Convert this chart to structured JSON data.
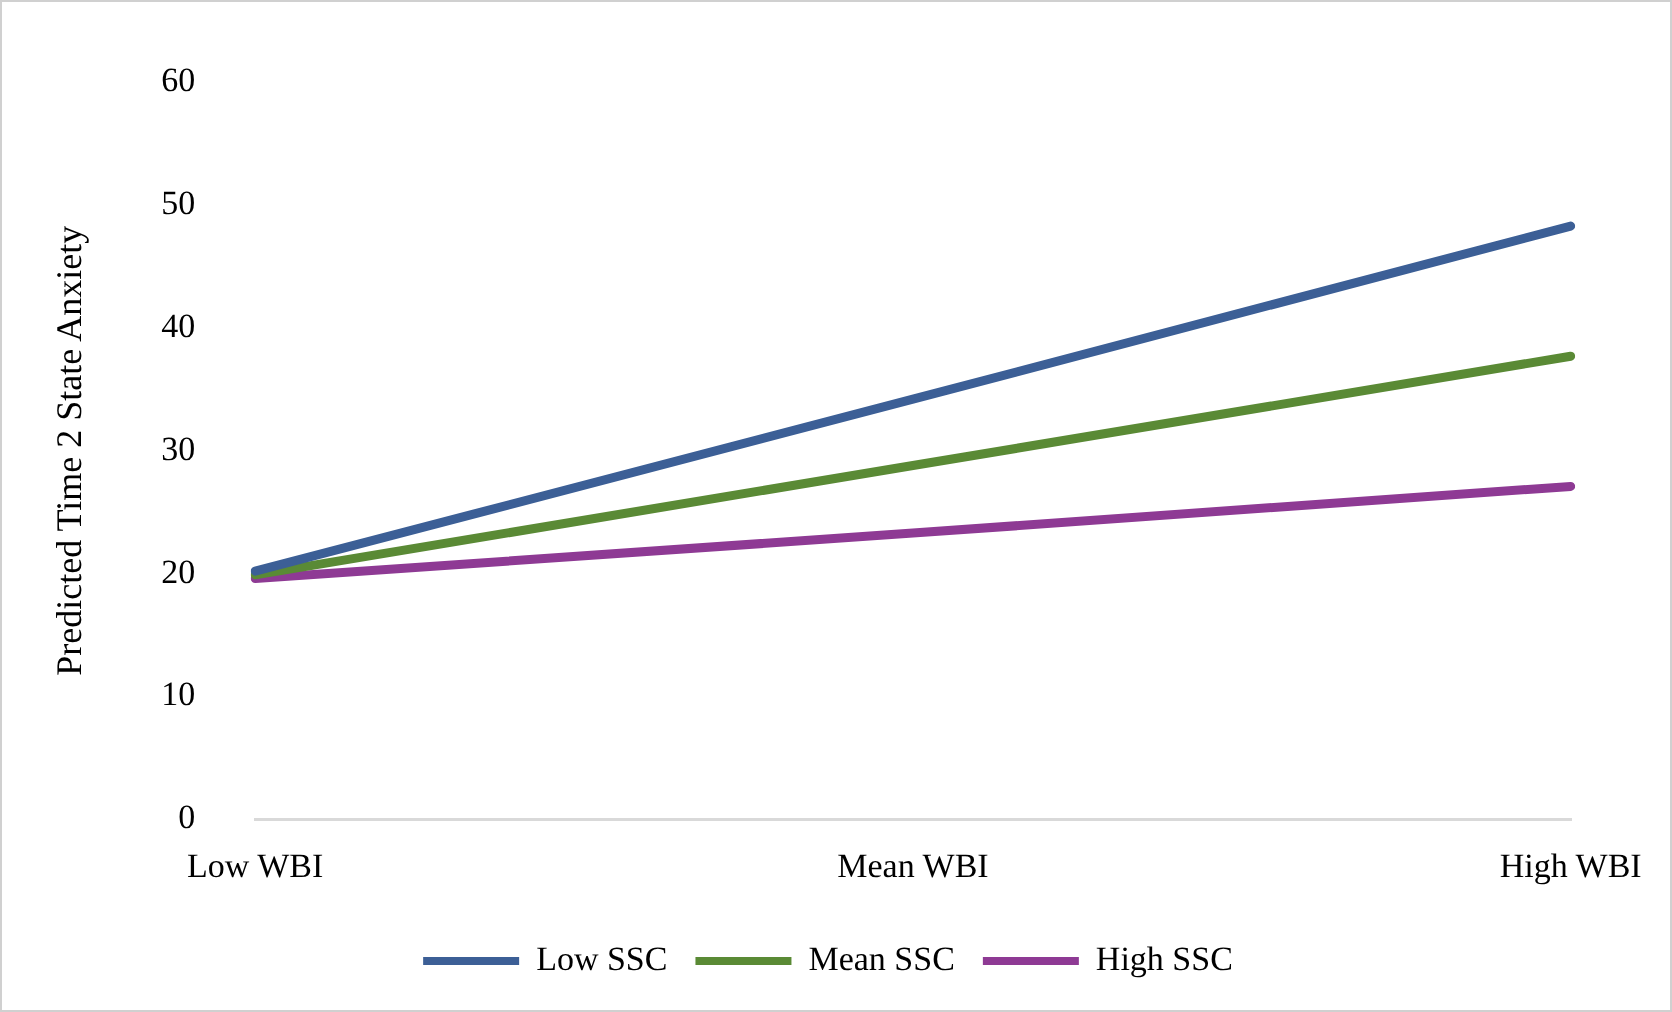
{
  "chart_data": {
    "type": "line",
    "ylabel": "Predicted Time 2 State Anxiety",
    "categories": [
      "Low WBI",
      "Mean WBI",
      "High WBI"
    ],
    "series": [
      {
        "name": "Low SSC",
        "color": "#3c5f96",
        "values": [
          20.2,
          34.2,
          48.3
        ]
      },
      {
        "name": "Mean SSC",
        "color": "#5a8a35",
        "values": [
          19.9,
          28.8,
          37.7
        ]
      },
      {
        "name": "High SSC",
        "color": "#8e3a94",
        "values": [
          19.6,
          23.3,
          27.1
        ]
      }
    ],
    "ylim": [
      0,
      60
    ],
    "yticks": [
      0,
      10,
      20,
      30,
      40,
      50,
      60
    ],
    "grid": false,
    "legend": "bottom",
    "marker": "none",
    "line_style": "solid"
  }
}
